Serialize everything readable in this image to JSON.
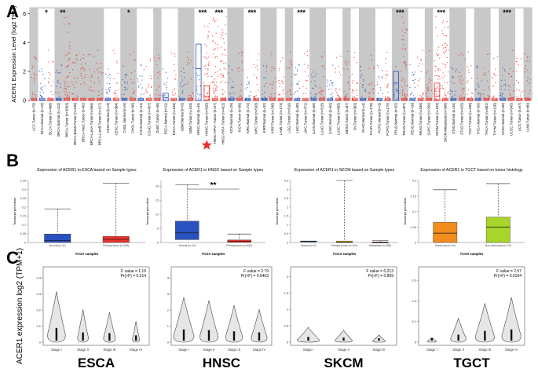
{
  "panels": {
    "A": "A",
    "B": "B",
    "C": "C"
  },
  "chart_data": [
    {
      "type": "boxplot",
      "panel": "A",
      "ylabel": "ACER1 Expression Level (log2 TPM)",
      "yticks": [
        0,
        2,
        4,
        6
      ],
      "ylim": [
        0,
        6.4
      ],
      "categories": [
        "ACC.Tumor (n=79)",
        "BLCA.Normal (n=19)",
        "BLCA.Tumor (n=408)",
        "BRCA.Normal (n=113)",
        "BRCA.Tumor (n=1093)",
        "BRCA-Basal.Tumor (n=190)",
        "BRCA-Her2.Tumor (n=82)",
        "BRCA-LumA.Tumor (n=564)",
        "BRCA-LumB.Tumor (n=217)",
        "CESC.Normal (n=3)",
        "CESC.Tumor (n=304)",
        "CHOL.Normal (n=9)",
        "CHOL.Tumor (n=36)",
        "COAD.Normal (n=41)",
        "COAD.Tumor (n=457)",
        "DLBC.Tumor (n=48)",
        "ESCA.Normal (n=11)",
        "ESCA.Tumor (n=184)",
        "GBM.Normal (n=5)",
        "GBM.Tumor (n=153)",
        "HNSC.Normal (n=44)",
        "HNSC.Tumor (n=520)",
        "HNSC-HPV+.Tumor (n=97)",
        "HNSC-HPV-.Tumor (n=421)",
        "KICH.Normal (n=25)",
        "KICH.Tumor (n=66)",
        "KIRC.Normal (n=72)",
        "KIRC.Tumor (n=533)",
        "KIRP.Normal (n=32)",
        "KIRP.Tumor (n=290)",
        "LAML.Tumor (n=173)",
        "LGG.Tumor (n=516)",
        "LIHC.Normal (n=50)",
        "LIHC.Tumor (n=371)",
        "LUAD.Normal (n=59)",
        "LUAD.Tumor (n=515)",
        "LUSC.Normal (n=52)",
        "LUSC.Tumor (n=503)",
        "MESO.Tumor (n=87)",
        "OV.Tumor (n=303)",
        "PAAD.Normal (n=4)",
        "PAAD.Tumor (n=178)",
        "PCPG.Normal (n=3)",
        "PCPG.Tumor (n=179)",
        "PRAD.Normal (n=52)",
        "PRAD.Tumor (n=497)",
        "READ.Normal (n=10)",
        "READ.Tumor (n=166)",
        "SARC.Tumor (n=259)",
        "SKCM.Tumor (n=103)",
        "SKCM.Metastasis (n=368)",
        "STAD.Normal (n=34)",
        "STAD.Tumor (n=415)",
        "TGCT.Tumor (n=150)",
        "THCA.Normal (n=59)",
        "THCA.Tumor (n=501)",
        "THYM.Tumor (n=120)",
        "UCEC.Normal (n=35)",
        "UCEC.Tumor (n=545)",
        "UCS.Tumor (n=57)",
        "UVM.Tumor (n=80)"
      ],
      "significance": [
        {
          "between": "BLCA",
          "label": "*"
        },
        {
          "between": "BRCA",
          "label": "**"
        },
        {
          "between": "CHOL",
          "label": "*"
        },
        {
          "between": "HNSC",
          "label": "***"
        },
        {
          "between": "HNSC-HPV+",
          "label": "***"
        },
        {
          "between": "KIRC",
          "label": "***"
        },
        {
          "between": "LIHC",
          "label": "***"
        },
        {
          "between": "PRAD",
          "label": "***"
        },
        {
          "between": "SKCM",
          "label": "***"
        },
        {
          "between": "UCEC",
          "label": "***"
        }
      ],
      "highlight": "HNSC.Tumor (n=520)"
    },
    {
      "type": "boxplot",
      "panel": "B",
      "title": "Expression of ACER1 in ESCA based on Sample types",
      "ylabel": "Transcript per million",
      "xlabel": "TCGA samples",
      "yticks": [
        0,
        0.05,
        0.1,
        0.15,
        0.2,
        0.25,
        0.3,
        0.35
      ],
      "ylim": [
        0,
        0.35
      ],
      "categories": [
        "Normal (n=11)",
        "Primary tumor (n=184)"
      ],
      "series": [
        {
          "name": "Normal",
          "color": "#2a52be",
          "q1": 0.0,
          "median": 0.012,
          "q3": 0.048,
          "whisker_high": 0.19
        },
        {
          "name": "Primary tumor",
          "color": "#e8322a",
          "q1": 0.0,
          "median": 0.018,
          "q3": 0.035,
          "whisker_high": 0.335
        }
      ]
    },
    {
      "type": "boxplot",
      "panel": "B",
      "title": "Expression of ACER1 in HNSC based on Sample types",
      "ylabel": "Transcript per million",
      "xlabel": "TCGA samples",
      "yticks": [
        0,
        5,
        10,
        15,
        20
      ],
      "ylim": [
        0,
        22
      ],
      "categories": [
        "Normal (n=44)",
        "Primary tumor (n=520)"
      ],
      "significance": "**",
      "series": [
        {
          "name": "Normal",
          "color": "#2a52be",
          "q1": 1.0,
          "median": 3.4,
          "q3": 7.6,
          "whisker_high": 20.5
        },
        {
          "name": "Primary tumor",
          "color": "#e8322a",
          "q1": 0.1,
          "median": 0.4,
          "q3": 0.9,
          "whisker_high": 3.0
        }
      ]
    },
    {
      "type": "boxplot",
      "panel": "B",
      "title": "Expression of ACER1 in SKCM based on Sample types",
      "ylabel": "Transcript per million",
      "xlabel": "TCGA samples",
      "yticks": [
        0,
        0.5,
        1.0,
        1.5,
        2.0,
        2.5,
        3.0,
        3.5
      ],
      "ylim": [
        0,
        3.5
      ],
      "categories": [
        "Normal (n=1)",
        "Primary tumor (n=104)",
        "Metastasis (n=368)"
      ],
      "series": [
        {
          "name": "Normal",
          "color": "#2a52be",
          "q1": 0.06,
          "median": 0.07,
          "q3": 0.08,
          "whisker_high": 0.08
        },
        {
          "name": "Primary tumor",
          "color": "#f59a1e",
          "q1": 0.0,
          "median": 0.03,
          "q3": 0.08,
          "whisker_high": 3.5
        },
        {
          "name": "Metastasis",
          "color": "#e8322a",
          "q1": 0.0,
          "median": 0.01,
          "q3": 0.03,
          "whisker_high": 0.1
        }
      ]
    },
    {
      "type": "boxplot",
      "panel": "B",
      "title": "Expression of ACER1 in TGCT based on tumor histology",
      "ylabel": "Transcript per million",
      "xlabel": "TCGA samples",
      "yticks": [
        0,
        0.05,
        0.1,
        0.15,
        0.2
      ],
      "ylim": [
        0,
        0.2
      ],
      "categories": [
        "Seminoma (n=64)",
        "Non-seminoma (n=70)"
      ],
      "series": [
        {
          "name": "Seminoma",
          "color": "#f28c1d",
          "q1": 0.0,
          "median": 0.03,
          "q3": 0.065,
          "whisker_high": 0.17
        },
        {
          "name": "Non-seminoma",
          "color": "#a8d52a",
          "q1": 0.0,
          "median": 0.05,
          "q3": 0.082,
          "whisker_high": 0.19
        }
      ]
    },
    {
      "type": "violin",
      "panel": "C",
      "label": "ESCA",
      "ylabel": "ACER1 expression log2 (TPM+1)",
      "categories": [
        "Stage I",
        "Stage II",
        "Stage III",
        "Stage IV"
      ],
      "yticks": [
        0,
        0.1,
        0.2,
        0.3,
        0.4
      ],
      "ylim": [
        0,
        0.45
      ],
      "f_value": "F value = 1.19",
      "p_value": "Pr(>F) = 0.314"
    },
    {
      "type": "violin",
      "panel": "C",
      "label": "HNSC",
      "categories": [
        "Stage I",
        "Stage II",
        "Stage III",
        "Stage IV"
      ],
      "yticks": [
        0,
        1,
        2,
        3,
        4
      ],
      "ylim": [
        0,
        4.5
      ],
      "f_value": "F value = 2.79",
      "p_value": "Pr(>F) = 0.0403"
    },
    {
      "type": "violin",
      "panel": "C",
      "label": "SKCM",
      "categories": [
        "Stage I",
        "Stage II",
        "Stage III"
      ],
      "yticks": [
        0,
        0.5,
        1,
        1.5,
        2
      ],
      "ylim": [
        0,
        2.2
      ],
      "f_value": "F value = 0.213",
      "p_value": "Pr(>F) = 0.809"
    },
    {
      "type": "violin",
      "panel": "C",
      "label": "TGCT",
      "categories": [
        "Stage I",
        "Stage II",
        "Stage III",
        "Stage IV"
      ],
      "yticks": [
        0,
        0.1,
        0.2,
        0.3
      ],
      "ylim": [
        0,
        0.35
      ],
      "f_value": "F value = 2.57",
      "p_value": "Pr(>F) = 0.0194"
    }
  ],
  "colors": {
    "tumor": "#e8322a",
    "normal": "#2a52be",
    "gray_band": "#c8c8c8",
    "star": "#e8322a"
  }
}
